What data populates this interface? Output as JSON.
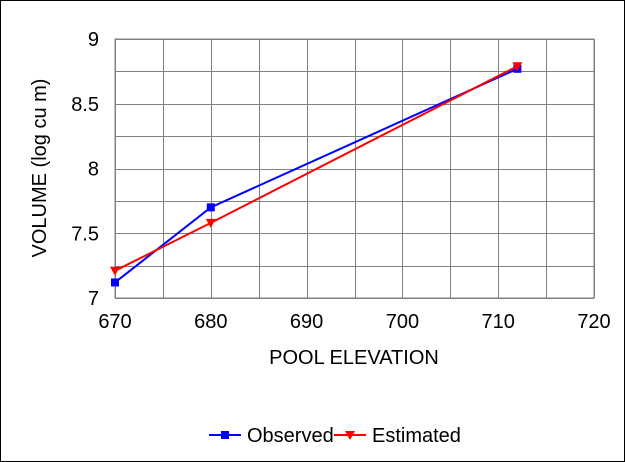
{
  "chart_data": {
    "type": "line",
    "title": "",
    "xlabel": "POOL ELEVATION",
    "ylabel": "VOLUME (log cu m)",
    "xlim": [
      670,
      720
    ],
    "ylim": [
      7,
      9
    ],
    "xticks": [
      670,
      680,
      690,
      700,
      710,
      720
    ],
    "xtick_labels": [
      "670",
      "680",
      "690",
      "700",
      "710",
      "720"
    ],
    "yticks": [
      7,
      7.5,
      8,
      8.5,
      9
    ],
    "ytick_labels": [
      "7",
      "7.5",
      "8",
      "8.5",
      "9"
    ],
    "grid": true,
    "legend_position": "bottom",
    "series": [
      {
        "name": "Observed",
        "color": "#0000ff",
        "marker": "square",
        "x": [
          670,
          680,
          712
        ],
        "y": [
          7.12,
          7.7,
          8.77
        ]
      },
      {
        "name": "Estimated",
        "color": "#ff0000",
        "marker": "triangle-down",
        "x": [
          670,
          680,
          712
        ],
        "y": [
          7.21,
          7.58,
          8.79
        ]
      }
    ]
  }
}
